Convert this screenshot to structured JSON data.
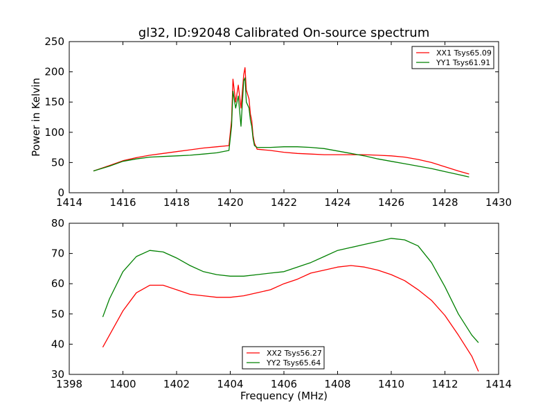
{
  "figure_title": "gl32, ID:92048 Calibrated On-source spectrum",
  "chart_data": [
    {
      "type": "line",
      "xlabel": "",
      "ylabel": "Power in Kelvin",
      "xlim": [
        1414,
        1430
      ],
      "ylim": [
        0,
        250
      ],
      "xticks": [
        "1414",
        "1416",
        "1418",
        "1420",
        "1422",
        "1424",
        "1426",
        "1428",
        "1430"
      ],
      "yticks": [
        "0",
        "50",
        "100",
        "150",
        "200",
        "250"
      ],
      "legend_position": "upper right",
      "grid": false,
      "series": [
        {
          "name": "XX1 Tsys65.09",
          "color": "#ff0000",
          "x": [
            1414.9,
            1415.5,
            1416,
            1416.5,
            1417,
            1417.5,
            1418,
            1418.5,
            1419,
            1419.5,
            1419.95,
            1420.05,
            1420.1,
            1420.2,
            1420.3,
            1420.4,
            1420.5,
            1420.55,
            1420.6,
            1420.7,
            1420.75,
            1420.8,
            1420.85,
            1420.9,
            1421.0,
            1421.5,
            1422,
            1422.5,
            1423,
            1423.5,
            1424,
            1424.5,
            1425,
            1425.5,
            1426,
            1426.5,
            1427,
            1427.5,
            1428,
            1428.5,
            1428.9
          ],
          "values": [
            36,
            45,
            53,
            58,
            62,
            65,
            68,
            71,
            74,
            76,
            78,
            120,
            188,
            150,
            178,
            140,
            195,
            207,
            170,
            155,
            130,
            120,
            95,
            82,
            72,
            70,
            67,
            65,
            64,
            63,
            63,
            63,
            63,
            62,
            61,
            59,
            55,
            50,
            43,
            36,
            31
          ]
        },
        {
          "name": "YY1 Tsys61.91",
          "color": "#008000",
          "x": [
            1414.9,
            1415.5,
            1416,
            1416.5,
            1417,
            1417.5,
            1418,
            1418.5,
            1419,
            1419.5,
            1419.95,
            1420.05,
            1420.1,
            1420.2,
            1420.3,
            1420.4,
            1420.5,
            1420.55,
            1420.6,
            1420.7,
            1420.75,
            1420.8,
            1420.85,
            1420.9,
            1421.0,
            1421.5,
            1422,
            1422.5,
            1423,
            1423.5,
            1424,
            1424.5,
            1425,
            1425.5,
            1426,
            1426.5,
            1427,
            1427.5,
            1428,
            1428.5,
            1428.9
          ],
          "values": [
            36,
            44,
            52,
            56,
            59,
            60,
            61,
            62,
            64,
            66,
            70,
            110,
            168,
            140,
            160,
            110,
            185,
            190,
            150,
            140,
            120,
            110,
            90,
            78,
            75,
            75,
            76,
            76,
            75,
            73,
            69,
            65,
            61,
            56,
            52,
            48,
            44,
            40,
            35,
            30,
            26
          ]
        }
      ]
    },
    {
      "type": "line",
      "xlabel": "Frequency (MHz)",
      "ylabel": "",
      "xlim": [
        1398,
        1414
      ],
      "ylim": [
        30,
        80
      ],
      "xticks": [
        "1398",
        "1400",
        "1402",
        "1404",
        "1406",
        "1408",
        "1410",
        "1412",
        "1414"
      ],
      "yticks": [
        "30",
        "40",
        "50",
        "60",
        "70",
        "80"
      ],
      "legend_position": "lower center",
      "grid": false,
      "series": [
        {
          "name": "XX2 Tsys56.27",
          "color": "#ff0000",
          "x": [
            1399.25,
            1399.5,
            1400,
            1400.5,
            1401,
            1401.5,
            1402,
            1402.5,
            1403,
            1403.5,
            1404,
            1404.5,
            1405,
            1405.5,
            1406,
            1406.5,
            1407,
            1407.5,
            1408,
            1408.5,
            1409,
            1409.5,
            1410,
            1410.5,
            1411,
            1411.5,
            1412,
            1412.5,
            1413,
            1413.25
          ],
          "values": [
            39,
            43,
            51,
            57,
            59.5,
            59.5,
            58,
            56.5,
            56,
            55.5,
            55.5,
            56,
            57,
            58,
            60,
            61.5,
            63.5,
            64.5,
            65.5,
            66,
            65.5,
            64.5,
            63,
            61,
            58,
            54.5,
            49.5,
            43,
            36,
            31
          ]
        },
        {
          "name": "YY2 Tsys65.64",
          "color": "#008000",
          "x": [
            1399.25,
            1399.5,
            1400,
            1400.5,
            1401,
            1401.5,
            1402,
            1402.5,
            1403,
            1403.5,
            1404,
            1404.5,
            1405,
            1405.5,
            1406,
            1406.5,
            1407,
            1407.5,
            1408,
            1408.5,
            1409,
            1409.5,
            1410,
            1410.5,
            1411,
            1411.5,
            1412,
            1412.5,
            1413,
            1413.25
          ],
          "values": [
            49,
            55,
            64,
            69,
            71,
            70.5,
            68.5,
            66,
            64,
            63,
            62.5,
            62.5,
            63,
            63.5,
            64,
            65.5,
            67,
            69,
            71,
            72,
            73,
            74,
            75,
            74.5,
            72.5,
            67,
            59,
            50,
            43,
            40.5
          ]
        }
      ]
    }
  ]
}
